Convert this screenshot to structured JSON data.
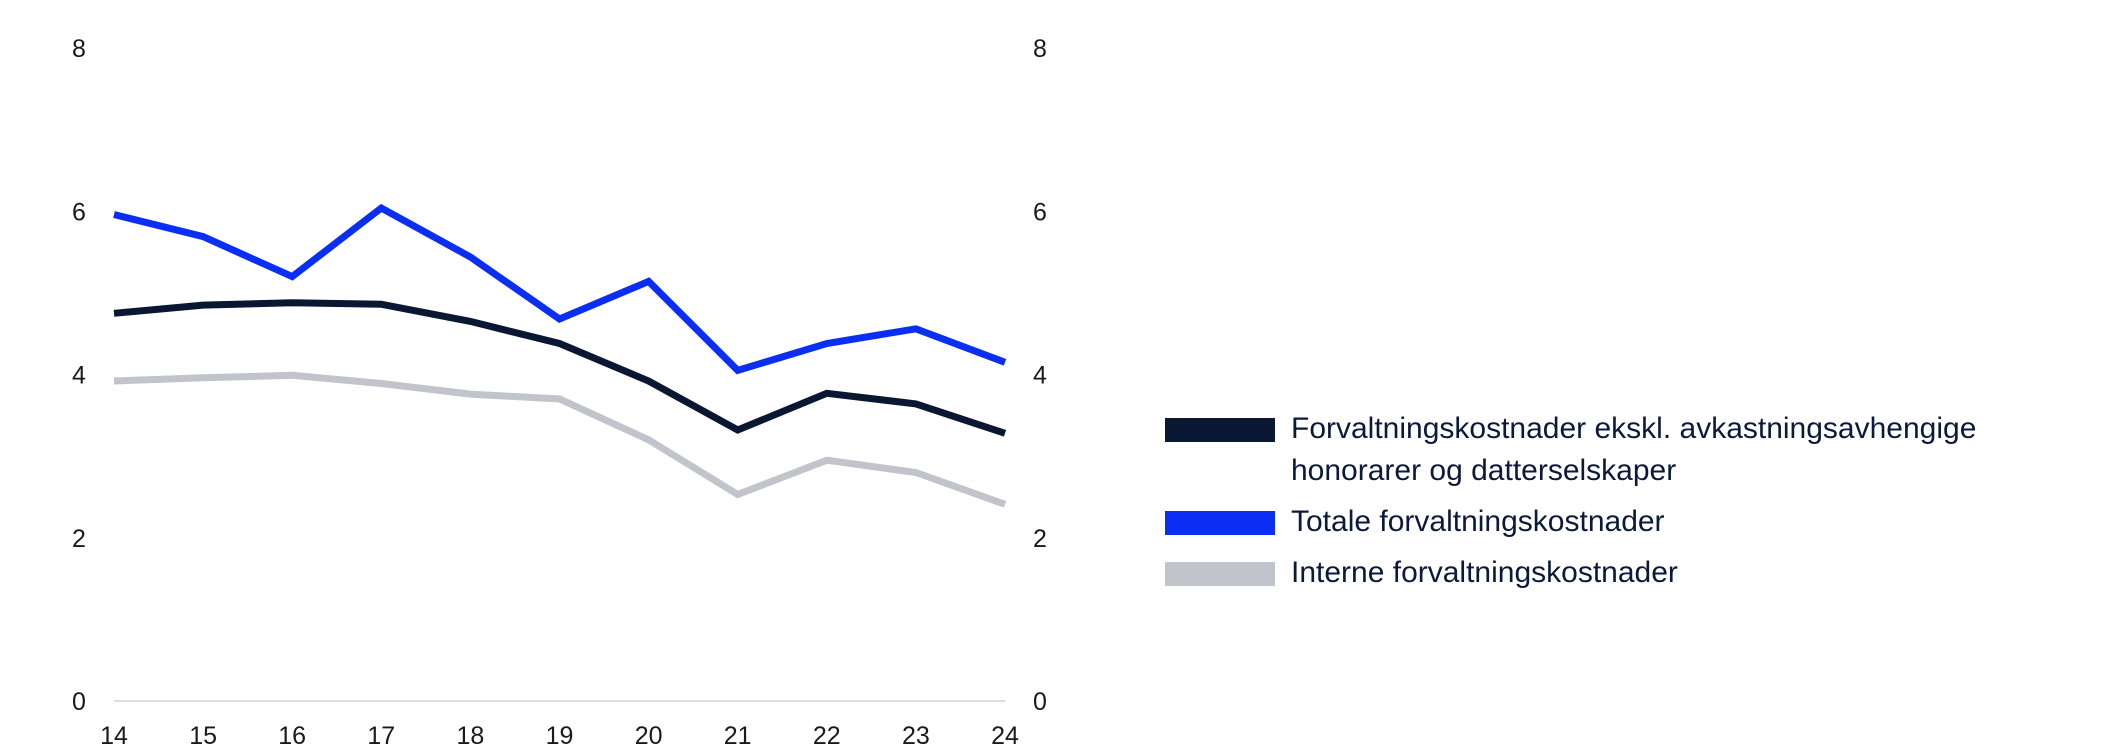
{
  "chart_data": {
    "type": "line",
    "x": [
      "14",
      "15",
      "16",
      "17",
      "18",
      "19",
      "20",
      "21",
      "22",
      "23",
      "24"
    ],
    "y_ticks": [
      "0",
      "2",
      "4",
      "6",
      "8"
    ],
    "ylim": [
      0,
      8
    ],
    "y_axis_left": true,
    "y_axis_right": true,
    "grid": false,
    "legend_position": "right",
    "series": [
      {
        "name": "Forvaltningskostnader ekskl. avkastningsavhengige honorarer og datterselskaper",
        "color": "#0a1733",
        "values": [
          4.75,
          4.85,
          4.88,
          4.86,
          4.65,
          4.38,
          3.92,
          3.32,
          3.77,
          3.64,
          3.28
        ]
      },
      {
        "name": "Totale forvaltningskostnader",
        "color": "#0a2ff2",
        "values": [
          5.96,
          5.69,
          5.2,
          6.04,
          5.44,
          4.68,
          5.14,
          4.05,
          4.38,
          4.56,
          4.15
        ]
      },
      {
        "name": "Interne forvaltningskostnader",
        "color": "#c2c4cb",
        "values": [
          3.92,
          3.96,
          3.99,
          3.89,
          3.76,
          3.7,
          3.2,
          2.53,
          2.95,
          2.8,
          2.41
        ]
      }
    ]
  }
}
